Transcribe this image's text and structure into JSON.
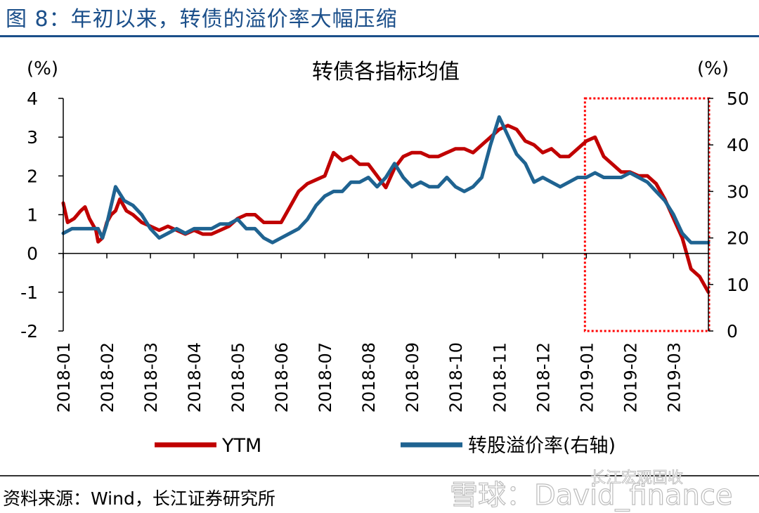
{
  "caption": "图 8：年初以来，转债的溢价率大幅压缩",
  "source": "资料来源：Wind，长江证券研究所",
  "watermark": "雪球：David_finance",
  "watermark_account": "长江宏观固收",
  "colors": {
    "ytm": "#c00000",
    "premium": "#1f6391",
    "highlight": "#ff0000",
    "caption": "#1b4f8a"
  },
  "chart_data": {
    "type": "line",
    "title": "转债各指标均值",
    "ylabel_left": "(%)",
    "ylabel_right": "(%)",
    "ylim_left": [
      -2,
      4
    ],
    "ylim_right": [
      0,
      50
    ],
    "yticks_left": [
      "4",
      "3",
      "2",
      "1",
      "0",
      "-1",
      "-2"
    ],
    "yticks_right": [
      "50",
      "40",
      "30",
      "20",
      "10",
      "0"
    ],
    "categories": [
      "2018-01",
      "2018-02",
      "2018-03",
      "2018-04",
      "2018-05",
      "2018-06",
      "2018-07",
      "2018-08",
      "2018-09",
      "2018-10",
      "2018-11",
      "2018-12",
      "2019-01",
      "2019-02",
      "2019-03"
    ],
    "x_range": [
      0,
      14.8
    ],
    "highlight_range": {
      "x": [
        12.0,
        14.8
      ],
      "y_left": [
        -2,
        4
      ],
      "note": "red dotted box"
    },
    "series": [
      {
        "name": "YTM",
        "axis": "left",
        "points": [
          [
            0,
            1.3
          ],
          [
            0.1,
            0.8
          ],
          [
            0.25,
            0.9
          ],
          [
            0.4,
            1.1
          ],
          [
            0.5,
            1.2
          ],
          [
            0.6,
            0.9
          ],
          [
            0.75,
            0.6
          ],
          [
            0.8,
            0.3
          ],
          [
            0.9,
            0.4
          ],
          [
            1.0,
            0.8
          ],
          [
            1.1,
            1.0
          ],
          [
            1.2,
            1.1
          ],
          [
            1.3,
            1.4
          ],
          [
            1.45,
            1.1
          ],
          [
            1.6,
            1.0
          ],
          [
            1.8,
            0.8
          ],
          [
            2.0,
            0.7
          ],
          [
            2.2,
            0.6
          ],
          [
            2.4,
            0.7
          ],
          [
            2.6,
            0.6
          ],
          [
            2.8,
            0.5
          ],
          [
            3.0,
            0.6
          ],
          [
            3.2,
            0.5
          ],
          [
            3.4,
            0.5
          ],
          [
            3.6,
            0.6
          ],
          [
            3.8,
            0.7
          ],
          [
            4.0,
            0.9
          ],
          [
            4.2,
            1.0
          ],
          [
            4.4,
            1.0
          ],
          [
            4.6,
            0.8
          ],
          [
            4.8,
            0.8
          ],
          [
            5.0,
            0.8
          ],
          [
            5.2,
            1.2
          ],
          [
            5.4,
            1.6
          ],
          [
            5.6,
            1.8
          ],
          [
            5.8,
            1.9
          ],
          [
            6.0,
            2.0
          ],
          [
            6.2,
            2.6
          ],
          [
            6.4,
            2.4
          ],
          [
            6.6,
            2.5
          ],
          [
            6.8,
            2.3
          ],
          [
            7.0,
            2.3
          ],
          [
            7.2,
            2.0
          ],
          [
            7.4,
            1.7
          ],
          [
            7.6,
            2.2
          ],
          [
            7.8,
            2.5
          ],
          [
            8.0,
            2.6
          ],
          [
            8.2,
            2.6
          ],
          [
            8.4,
            2.5
          ],
          [
            8.6,
            2.5
          ],
          [
            8.8,
            2.6
          ],
          [
            9.0,
            2.7
          ],
          [
            9.2,
            2.7
          ],
          [
            9.4,
            2.6
          ],
          [
            9.6,
            2.8
          ],
          [
            9.8,
            3.0
          ],
          [
            10.0,
            3.2
          ],
          [
            10.2,
            3.3
          ],
          [
            10.4,
            3.2
          ],
          [
            10.6,
            2.9
          ],
          [
            10.8,
            2.8
          ],
          [
            11.0,
            2.6
          ],
          [
            11.2,
            2.7
          ],
          [
            11.4,
            2.5
          ],
          [
            11.6,
            2.5
          ],
          [
            11.8,
            2.7
          ],
          [
            12.0,
            2.9
          ],
          [
            12.2,
            3.0
          ],
          [
            12.4,
            2.5
          ],
          [
            12.6,
            2.3
          ],
          [
            12.8,
            2.1
          ],
          [
            13.0,
            2.1
          ],
          [
            13.2,
            2.0
          ],
          [
            13.4,
            2.0
          ],
          [
            13.6,
            1.8
          ],
          [
            13.8,
            1.4
          ],
          [
            14.0,
            0.9
          ],
          [
            14.2,
            0.4
          ],
          [
            14.4,
            -0.4
          ],
          [
            14.6,
            -0.6
          ],
          [
            14.8,
            -1.0
          ]
        ]
      },
      {
        "name": "转股溢价率(右轴)",
        "axis": "right",
        "points": [
          [
            0,
            21
          ],
          [
            0.2,
            22
          ],
          [
            0.4,
            22
          ],
          [
            0.6,
            22
          ],
          [
            0.8,
            22
          ],
          [
            0.9,
            20
          ],
          [
            1.0,
            23
          ],
          [
            1.2,
            31
          ],
          [
            1.4,
            28
          ],
          [
            1.6,
            27
          ],
          [
            1.8,
            25
          ],
          [
            2.0,
            22
          ],
          [
            2.2,
            20
          ],
          [
            2.4,
            21
          ],
          [
            2.6,
            22
          ],
          [
            2.8,
            21
          ],
          [
            3.0,
            22
          ],
          [
            3.2,
            22
          ],
          [
            3.4,
            22
          ],
          [
            3.6,
            23
          ],
          [
            3.8,
            23
          ],
          [
            4.0,
            24
          ],
          [
            4.2,
            22
          ],
          [
            4.4,
            22
          ],
          [
            4.6,
            20
          ],
          [
            4.8,
            19
          ],
          [
            5.0,
            20
          ],
          [
            5.2,
            21
          ],
          [
            5.4,
            22
          ],
          [
            5.6,
            24
          ],
          [
            5.8,
            27
          ],
          [
            6.0,
            29
          ],
          [
            6.2,
            30
          ],
          [
            6.4,
            30
          ],
          [
            6.6,
            32
          ],
          [
            6.8,
            32
          ],
          [
            7.0,
            33
          ],
          [
            7.2,
            31
          ],
          [
            7.4,
            33
          ],
          [
            7.6,
            36
          ],
          [
            7.8,
            33
          ],
          [
            8.0,
            31
          ],
          [
            8.2,
            32
          ],
          [
            8.4,
            31
          ],
          [
            8.6,
            31
          ],
          [
            8.8,
            33
          ],
          [
            9.0,
            31
          ],
          [
            9.2,
            30
          ],
          [
            9.4,
            31
          ],
          [
            9.6,
            33
          ],
          [
            9.8,
            40
          ],
          [
            10.0,
            46
          ],
          [
            10.2,
            42
          ],
          [
            10.4,
            38
          ],
          [
            10.6,
            36
          ],
          [
            10.8,
            32
          ],
          [
            11.0,
            33
          ],
          [
            11.2,
            32
          ],
          [
            11.4,
            31
          ],
          [
            11.6,
            32
          ],
          [
            11.8,
            33
          ],
          [
            12.0,
            33
          ],
          [
            12.2,
            34
          ],
          [
            12.4,
            33
          ],
          [
            12.6,
            33
          ],
          [
            12.8,
            33
          ],
          [
            13.0,
            34
          ],
          [
            13.2,
            33
          ],
          [
            13.4,
            32
          ],
          [
            13.6,
            30
          ],
          [
            13.8,
            28
          ],
          [
            14.0,
            25
          ],
          [
            14.2,
            21
          ],
          [
            14.4,
            19
          ],
          [
            14.6,
            19
          ],
          [
            14.8,
            19
          ]
        ]
      }
    ]
  }
}
